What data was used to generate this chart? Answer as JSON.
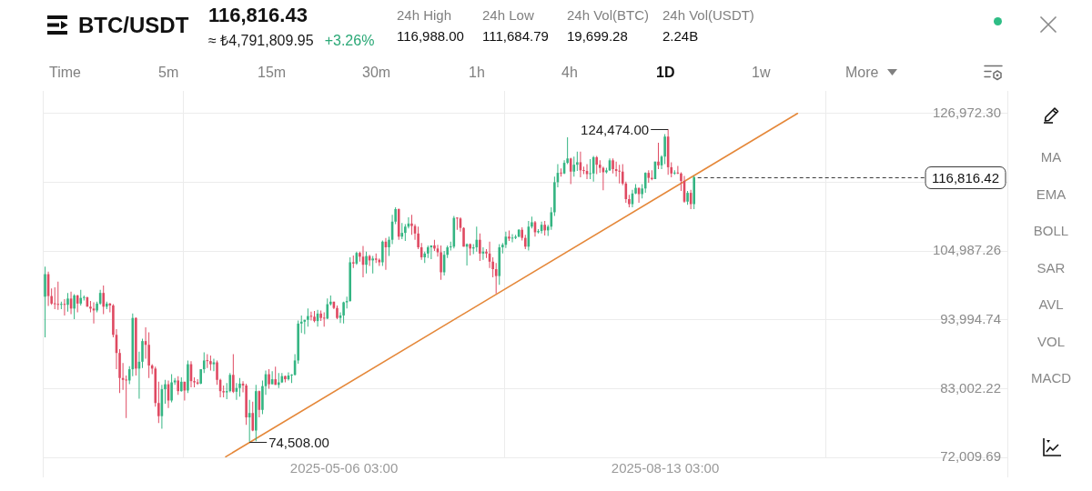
{
  "chart_data": {
    "type": "candlestick",
    "title": "BTC/USDT",
    "annotations": [
      "116,816.43",
      "≈ ₺4,791,809.95",
      "+3.26%",
      "24h High",
      "116,988.00",
      "24h Low",
      "111,684.79",
      "24h Vol(BTC)",
      "19,699.28",
      "24h Vol(USDT)",
      "2.24B",
      "Time",
      "5m",
      "15m",
      "30m",
      "1h",
      "4h",
      "1D",
      "1w",
      "More",
      "MA",
      "EMA",
      "BOLL",
      "SAR",
      "AVL",
      "VOL",
      "MACD",
      {
        "text": "124,474.00",
        "x": "2025-08-14",
        "y": 124474
      },
      {
        "text": "74,508.00",
        "x": "2025-04-07",
        "y": 74508
      }
    ],
    "x": [
      "2025-02-03",
      "2025-02-04",
      "2025-02-05",
      "2025-02-06",
      "2025-02-07",
      "2025-02-08",
      "2025-02-09",
      "2025-02-10",
      "2025-02-11",
      "2025-02-12",
      "2025-02-13",
      "2025-02-14",
      "2025-02-15",
      "2025-02-16",
      "2025-02-17",
      "2025-02-18",
      "2025-02-19",
      "2025-02-20",
      "2025-02-21",
      "2025-02-22",
      "2025-02-23",
      "2025-02-24",
      "2025-02-25",
      "2025-02-26",
      "2025-02-27",
      "2025-02-28",
      "2025-03-01",
      "2025-03-02",
      "2025-03-03",
      "2025-03-04",
      "2025-03-05",
      "2025-03-06",
      "2025-03-07",
      "2025-03-08",
      "2025-03-09",
      "2025-03-10",
      "2025-03-11",
      "2025-03-12",
      "2025-03-13",
      "2025-03-14",
      "2025-03-15",
      "2025-03-16",
      "2025-03-17",
      "2025-03-18",
      "2025-03-19",
      "2025-03-20",
      "2025-03-21",
      "2025-03-22",
      "2025-03-23",
      "2025-03-24",
      "2025-03-25",
      "2025-03-26",
      "2025-03-27",
      "2025-03-28",
      "2025-03-29",
      "2025-03-30",
      "2025-03-31",
      "2025-04-01",
      "2025-04-02",
      "2025-04-03",
      "2025-04-04",
      "2025-04-05",
      "2025-04-06",
      "2025-04-07",
      "2025-04-08",
      "2025-04-09",
      "2025-04-10",
      "2025-04-11",
      "2025-04-12",
      "2025-04-13",
      "2025-04-14",
      "2025-04-15",
      "2025-04-16",
      "2025-04-17",
      "2025-04-18",
      "2025-04-19",
      "2025-04-20",
      "2025-04-21",
      "2025-04-22",
      "2025-04-23",
      "2025-04-24",
      "2025-04-25",
      "2025-04-26",
      "2025-04-27",
      "2025-04-28",
      "2025-04-29",
      "2025-04-30",
      "2025-05-01",
      "2025-05-02",
      "2025-05-03",
      "2025-05-04",
      "2025-05-05",
      "2025-05-06",
      "2025-05-07",
      "2025-05-08",
      "2025-05-09",
      "2025-05-10",
      "2025-05-11",
      "2025-05-12",
      "2025-05-13",
      "2025-05-14",
      "2025-05-15",
      "2025-05-16",
      "2025-05-17",
      "2025-05-18",
      "2025-05-19",
      "2025-05-20",
      "2025-05-21",
      "2025-05-22",
      "2025-05-23",
      "2025-05-24",
      "2025-05-25",
      "2025-05-26",
      "2025-05-27",
      "2025-05-28",
      "2025-05-29",
      "2025-05-30",
      "2025-05-31",
      "2025-06-01",
      "2025-06-02",
      "2025-06-03",
      "2025-06-04",
      "2025-06-05",
      "2025-06-06",
      "2025-06-07",
      "2025-06-08",
      "2025-06-09",
      "2025-06-10",
      "2025-06-11",
      "2025-06-12",
      "2025-06-13",
      "2025-06-14",
      "2025-06-15",
      "2025-06-16",
      "2025-06-17",
      "2025-06-18",
      "2025-06-19",
      "2025-06-20",
      "2025-06-21",
      "2025-06-22",
      "2025-06-23",
      "2025-06-24",
      "2025-06-25",
      "2025-06-26",
      "2025-06-27",
      "2025-06-28",
      "2025-06-29",
      "2025-06-30",
      "2025-07-01",
      "2025-07-02",
      "2025-07-03",
      "2025-07-04",
      "2025-07-05",
      "2025-07-06",
      "2025-07-07",
      "2025-07-08",
      "2025-07-09",
      "2025-07-10",
      "2025-07-11",
      "2025-07-12",
      "2025-07-13",
      "2025-07-14",
      "2025-07-15",
      "2025-07-16",
      "2025-07-17",
      "2025-07-18",
      "2025-07-19",
      "2025-07-20",
      "2025-07-21",
      "2025-07-22",
      "2025-07-23",
      "2025-07-24",
      "2025-07-25",
      "2025-07-26",
      "2025-07-27",
      "2025-07-28",
      "2025-07-29",
      "2025-07-30",
      "2025-07-31",
      "2025-08-01",
      "2025-08-02",
      "2025-08-03",
      "2025-08-04",
      "2025-08-05",
      "2025-08-06",
      "2025-08-07",
      "2025-08-08",
      "2025-08-09",
      "2025-08-10",
      "2025-08-11",
      "2025-08-12",
      "2025-08-13",
      "2025-08-14",
      "2025-08-15",
      "2025-08-16",
      "2025-08-17",
      "2025-08-18",
      "2025-08-19",
      "2025-08-20",
      "2025-08-21",
      "2025-08-22"
    ],
    "ohlc": [
      [
        97700,
        102500,
        91200,
        101300
      ],
      [
        101300,
        101700,
        96200,
        97800
      ],
      [
        97800,
        99000,
        96400,
        96600
      ],
      [
        96600,
        99200,
        95700,
        96500
      ],
      [
        96500,
        100100,
        95600,
        96400
      ],
      [
        96400,
        96900,
        95700,
        96500
      ],
      [
        96500,
        97300,
        94700,
        96400
      ],
      [
        96400,
        98300,
        95300,
        97400
      ],
      [
        97400,
        98500,
        94900,
        95800
      ],
      [
        95800,
        98100,
        94100,
        97900
      ],
      [
        97900,
        98000,
        95200,
        96600
      ],
      [
        96600,
        98800,
        96300,
        97500
      ],
      [
        97500,
        97900,
        97100,
        97600
      ],
      [
        97600,
        97700,
        96100,
        96100
      ],
      [
        96100,
        97000,
        95200,
        95800
      ],
      [
        95800,
        96800,
        93400,
        95500
      ],
      [
        95500,
        96900,
        95200,
        96600
      ],
      [
        96600,
        98800,
        96400,
        98300
      ],
      [
        98300,
        99500,
        94900,
        96100
      ],
      [
        96100,
        96900,
        95700,
        96600
      ],
      [
        96600,
        96700,
        95200,
        96300
      ],
      [
        96300,
        96500,
        91200,
        91600
      ],
      [
        91600,
        92500,
        86100,
        88700
      ],
      [
        88700,
        89300,
        82300,
        84700
      ],
      [
        84700,
        87100,
        82800,
        84400
      ],
      [
        84400,
        85100,
        78300,
        84300
      ],
      [
        84300,
        86600,
        83700,
        86100
      ],
      [
        86100,
        95000,
        85000,
        94300
      ],
      [
        94300,
        94400,
        85100,
        86200
      ],
      [
        86200,
        88900,
        81400,
        87300
      ],
      [
        87300,
        91000,
        86300,
        90600
      ],
      [
        90600,
        92800,
        87800,
        90000
      ],
      [
        90000,
        92000,
        84700,
        86700
      ],
      [
        86700,
        86900,
        85300,
        86200
      ],
      [
        86200,
        86500,
        80100,
        80700
      ],
      [
        80700,
        84100,
        77500,
        78600
      ],
      [
        78600,
        83600,
        76600,
        82900
      ],
      [
        82900,
        84400,
        80600,
        83700
      ],
      [
        83700,
        84300,
        79900,
        81100
      ],
      [
        81100,
        85300,
        80800,
        84000
      ],
      [
        84000,
        84700,
        83600,
        84300
      ],
      [
        84300,
        85000,
        82000,
        82600
      ],
      [
        82600,
        84800,
        82500,
        84100
      ],
      [
        84100,
        84100,
        81100,
        82700
      ],
      [
        82700,
        87500,
        82300,
        86900
      ],
      [
        86900,
        87400,
        83200,
        84200
      ],
      [
        84200,
        84800,
        83200,
        84000
      ],
      [
        84000,
        84500,
        83600,
        83800
      ],
      [
        83800,
        86100,
        83700,
        86100
      ],
      [
        86100,
        88800,
        85500,
        87500
      ],
      [
        87500,
        88500,
        86300,
        87400
      ],
      [
        87400,
        88300,
        85900,
        86900
      ],
      [
        86900,
        87800,
        85800,
        87200
      ],
      [
        87200,
        87500,
        83600,
        84400
      ],
      [
        84400,
        84600,
        81600,
        82600
      ],
      [
        82600,
        83500,
        81600,
        82400
      ],
      [
        82400,
        83900,
        81300,
        82600
      ],
      [
        82600,
        85500,
        82400,
        85200
      ],
      [
        85200,
        88500,
        82300,
        82500
      ],
      [
        82500,
        83900,
        81200,
        83100
      ],
      [
        83100,
        84700,
        81700,
        83800
      ],
      [
        83800,
        84200,
        82400,
        83500
      ],
      [
        83500,
        83800,
        77200,
        78400
      ],
      [
        78400,
        81200,
        74508,
        79100
      ],
      [
        79100,
        80900,
        76200,
        76300
      ],
      [
        76300,
        83600,
        74600,
        82600
      ],
      [
        82600,
        82700,
        78400,
        79600
      ],
      [
        79600,
        84300,
        78900,
        83400
      ],
      [
        83400,
        85900,
        82000,
        85300
      ],
      [
        85300,
        86100,
        83000,
        83700
      ],
      [
        83700,
        85800,
        83700,
        84500
      ],
      [
        84500,
        86500,
        83600,
        83600
      ],
      [
        83600,
        85500,
        83100,
        84000
      ],
      [
        84000,
        85500,
        83900,
        85000
      ],
      [
        85000,
        85100,
        84000,
        84500
      ],
      [
        84500,
        85600,
        84300,
        85100
      ],
      [
        85100,
        85300,
        83900,
        85200
      ],
      [
        85200,
        88500,
        85100,
        87500
      ],
      [
        87500,
        93900,
        87000,
        93400
      ],
      [
        93400,
        94700,
        91900,
        93700
      ],
      [
        93700,
        94000,
        91700,
        94000
      ],
      [
        94000,
        95800,
        92900,
        94600
      ],
      [
        94600,
        95300,
        93900,
        94500
      ],
      [
        94500,
        95400,
        93600,
        93800
      ],
      [
        93800,
        95600,
        92900,
        95000
      ],
      [
        95000,
        95500,
        93800,
        94300
      ],
      [
        94300,
        95200,
        92900,
        94200
      ],
      [
        94200,
        97400,
        94100,
        96500
      ],
      [
        96500,
        97900,
        96300,
        96900
      ],
      [
        96900,
        96900,
        95700,
        95900
      ],
      [
        95900,
        96300,
        94100,
        94300
      ],
      [
        94300,
        95200,
        93500,
        94700
      ],
      [
        94700,
        96900,
        93400,
        96800
      ],
      [
        96800,
        97700,
        95800,
        97000
      ],
      [
        97000,
        104000,
        96900,
        103200
      ],
      [
        103200,
        104300,
        102300,
        103000
      ],
      [
        103000,
        104900,
        102800,
        104700
      ],
      [
        104700,
        104900,
        103300,
        104100
      ],
      [
        104100,
        105800,
        100800,
        102800
      ],
      [
        102800,
        104900,
        101400,
        104200
      ],
      [
        104200,
        104400,
        102600,
        103500
      ],
      [
        103500,
        104200,
        101400,
        103800
      ],
      [
        103800,
        104600,
        103100,
        103600
      ],
      [
        103600,
        103800,
        102600,
        103200
      ],
      [
        103200,
        106700,
        102600,
        106500
      ],
      [
        106500,
        107100,
        102000,
        105600
      ],
      [
        105600,
        107300,
        104200,
        106800
      ],
      [
        106800,
        110800,
        106100,
        109700
      ],
      [
        109700,
        112000,
        109300,
        111700
      ],
      [
        111700,
        111800,
        106800,
        107300
      ],
      [
        107300,
        109500,
        106900,
        107900
      ],
      [
        107900,
        109300,
        106600,
        108900
      ],
      [
        108900,
        110400,
        108600,
        109400
      ],
      [
        109400,
        110800,
        107600,
        109000
      ],
      [
        109000,
        109300,
        106800,
        107800
      ],
      [
        107800,
        108900,
        105300,
        105600
      ],
      [
        105600,
        106300,
        103600,
        104000
      ],
      [
        104000,
        104900,
        103100,
        104600
      ],
      [
        104600,
        105900,
        103900,
        105600
      ],
      [
        105600,
        105900,
        103700,
        105900
      ],
      [
        105900,
        106800,
        105000,
        105400
      ],
      [
        105400,
        106000,
        104100,
        104800
      ],
      [
        104800,
        105900,
        100400,
        101600
      ],
      [
        101600,
        105000,
        101100,
        104400
      ],
      [
        104400,
        105900,
        103900,
        105600
      ],
      [
        105600,
        106500,
        105100,
        105700
      ],
      [
        105700,
        110600,
        105400,
        110300
      ],
      [
        110300,
        110400,
        108400,
        110200
      ],
      [
        110200,
        110400,
        108100,
        108700
      ],
      [
        108700,
        108800,
        105700,
        105700
      ],
      [
        105700,
        106200,
        102700,
        106100
      ],
      [
        106100,
        106200,
        104300,
        105400
      ],
      [
        105400,
        106100,
        104500,
        105600
      ],
      [
        105600,
        108900,
        104900,
        106800
      ],
      [
        106800,
        107800,
        103400,
        104600
      ],
      [
        104600,
        105600,
        103600,
        104900
      ],
      [
        104900,
        105300,
        103900,
        104600
      ],
      [
        104600,
        106500,
        102300,
        103300
      ],
      [
        103300,
        104000,
        100800,
        102100
      ],
      [
        102100,
        103100,
        98200,
        101000
      ],
      [
        101000,
        106100,
        99600,
        105600
      ],
      [
        105600,
        106300,
        104600,
        106000
      ],
      [
        106000,
        108100,
        105500,
        107300
      ],
      [
        107300,
        108300,
        106600,
        107000
      ],
      [
        107000,
        107700,
        106400,
        107100
      ],
      [
        107100,
        107600,
        106900,
        107300
      ],
      [
        107300,
        108500,
        107200,
        108400
      ],
      [
        108400,
        108800,
        106700,
        107100
      ],
      [
        107100,
        107600,
        105300,
        105700
      ],
      [
        105700,
        109800,
        105100,
        108900
      ],
      [
        108900,
        110500,
        108600,
        109600
      ],
      [
        109600,
        109800,
        107300,
        108000
      ],
      [
        108000,
        108500,
        107800,
        108200
      ],
      [
        108200,
        109700,
        107800,
        109200
      ],
      [
        109200,
        109800,
        107500,
        108300
      ],
      [
        108300,
        109200,
        107400,
        108900
      ],
      [
        108900,
        112000,
        108400,
        111200
      ],
      [
        111200,
        116900,
        110600,
        116000
      ],
      [
        116000,
        118900,
        115200,
        117500
      ],
      [
        117500,
        118200,
        116900,
        117400
      ],
      [
        117400,
        119500,
        117300,
        119100
      ],
      [
        119100,
        123200,
        118900,
        119800
      ],
      [
        119800,
        119900,
        115700,
        117700
      ],
      [
        117700,
        120100,
        116900,
        118800
      ],
      [
        118800,
        120900,
        117800,
        119200
      ],
      [
        119200,
        120900,
        116800,
        117900
      ],
      [
        117900,
        118500,
        117300,
        117800
      ],
      [
        117800,
        118900,
        116500,
        117300
      ],
      [
        117300,
        119700,
        116500,
        117400
      ],
      [
        117400,
        120200,
        116100,
        120000
      ],
      [
        120000,
        120200,
        117300,
        118800
      ],
      [
        118800,
        119500,
        117500,
        118300
      ],
      [
        118300,
        118500,
        114700,
        117600
      ],
      [
        117600,
        118300,
        117400,
        117900
      ],
      [
        117900,
        119800,
        117800,
        119500
      ],
      [
        119500,
        119800,
        117400,
        118100
      ],
      [
        118100,
        119300,
        116900,
        117800
      ],
      [
        117800,
        118800,
        115800,
        117700
      ],
      [
        117700,
        118900,
        115500,
        115800
      ],
      [
        115800,
        116100,
        112700,
        113300
      ],
      [
        113300,
        114000,
        112000,
        112500
      ],
      [
        112500,
        114800,
        112000,
        114200
      ],
      [
        114200,
        115700,
        114100,
        115100
      ],
      [
        115100,
        115100,
        112700,
        114100
      ],
      [
        114100,
        115700,
        113400,
        115000
      ],
      [
        115000,
        117600,
        114300,
        117500
      ],
      [
        117500,
        117900,
        115900,
        116700
      ],
      [
        116700,
        117900,
        116300,
        116500
      ],
      [
        116500,
        119300,
        116500,
        119300
      ],
      [
        119300,
        122300,
        118100,
        118700
      ],
      [
        118700,
        120300,
        118100,
        120100
      ],
      [
        120100,
        123700,
        118900,
        123300
      ],
      [
        123300,
        124474,
        117200,
        118400
      ],
      [
        118400,
        119200,
        116800,
        117400
      ],
      [
        117400,
        117900,
        117200,
        117500
      ],
      [
        117500,
        118600,
        117300,
        117400
      ],
      [
        117400,
        117600,
        114600,
        116200
      ],
      [
        116200,
        117000,
        112700,
        112900
      ],
      [
        112900,
        114600,
        112400,
        114300
      ],
      [
        114300,
        114800,
        111700,
        112500
      ],
      [
        112500,
        117000,
        111700,
        116816.42
      ]
    ],
    "colors": [
      "#35b583",
      "#df4a62",
      "#df4a62",
      "#df4a62",
      "#df4a62",
      "#35b583",
      "#df4a62",
      "#35b583",
      "#df4a62",
      "#35b583",
      "#df4a62",
      "#35b583",
      "#35b583",
      "#df4a62",
      "#df4a62",
      "#df4a62",
      "#35b583",
      "#35b583",
      "#df4a62",
      "#35b583",
      "#df4a62",
      "#df4a62",
      "#df4a62",
      "#df4a62",
      "#df4a62",
      "#df4a62",
      "#35b583",
      "#35b583",
      "#df4a62",
      "#35b583",
      "#35b583",
      "#df4a62",
      "#df4a62",
      "#df4a62",
      "#df4a62",
      "#df4a62",
      "#35b583",
      "#35b583",
      "#df4a62",
      "#35b583",
      "#35b583",
      "#df4a62",
      "#35b583",
      "#df4a62",
      "#35b583",
      "#df4a62",
      "#df4a62",
      "#df4a62",
      "#35b583",
      "#35b583",
      "#df4a62",
      "#df4a62",
      "#35b583",
      "#df4a62",
      "#df4a62",
      "#df4a62",
      "#35b583",
      "#35b583",
      "#df4a62",
      "#35b583",
      "#35b583",
      "#df4a62",
      "#df4a62",
      "#35b583",
      "#df4a62",
      "#35b583",
      "#df4a62",
      "#35b583",
      "#35b583",
      "#df4a62",
      "#35b583",
      "#df4a62",
      "#35b583",
      "#35b583",
      "#df4a62",
      "#35b583",
      "#35b583",
      "#35b583",
      "#35b583",
      "#35b583",
      "#35b583",
      "#35b583",
      "#df4a62",
      "#df4a62",
      "#35b583",
      "#df4a62",
      "#df4a62",
      "#35b583",
      "#35b583",
      "#df4a62",
      "#df4a62",
      "#35b583",
      "#35b583",
      "#35b583",
      "#35b583",
      "#df4a62",
      "#35b583",
      "#df4a62",
      "#df4a62",
      "#35b583",
      "#df4a62",
      "#35b583",
      "#df4a62",
      "#df4a62",
      "#35b583",
      "#df4a62",
      "#35b583",
      "#35b583",
      "#35b583",
      "#df4a62",
      "#35b583",
      "#35b583",
      "#35b583",
      "#df4a62",
      "#df4a62",
      "#df4a62",
      "#df4a62",
      "#35b583",
      "#35b583",
      "#35b583",
      "#df4a62",
      "#df4a62",
      "#df4a62",
      "#35b583",
      "#35b583",
      "#35b583",
      "#35b583",
      "#df4a62",
      "#df4a62",
      "#df4a62",
      "#35b583",
      "#df4a62",
      "#35b583",
      "#35b583",
      "#df4a62",
      "#35b583",
      "#df4a62",
      "#df4a62",
      "#df4a62",
      "#df4a62",
      "#35b583",
      "#35b583",
      "#35b583",
      "#df4a62",
      "#35b583",
      "#35b583",
      "#35b583",
      "#df4a62",
      "#df4a62",
      "#35b583",
      "#35b583",
      "#df4a62",
      "#35b583",
      "#35b583",
      "#df4a62",
      "#35b583",
      "#35b583",
      "#35b583",
      "#35b583",
      "#df4a62",
      "#35b583",
      "#35b583",
      "#df4a62",
      "#35b583",
      "#35b583",
      "#df4a62",
      "#df4a62",
      "#df4a62",
      "#35b583",
      "#35b583",
      "#df4a62",
      "#df4a62",
      "#df4a62",
      "#35b583",
      "#35b583",
      "#df4a62",
      "#df4a62",
      "#df4a62",
      "#df4a62",
      "#df4a62",
      "#df4a62",
      "#35b583",
      "#35b583",
      "#df4a62",
      "#35b583",
      "#35b583",
      "#df4a62",
      "#df4a62",
      "#35b583",
      "#df4a62",
      "#35b583",
      "#35b583",
      "#df4a62",
      "#df4a62",
      "#35b583",
      "#df4a62",
      "#df4a62",
      "#df4a62",
      "#35b583",
      "#df4a62",
      "#35b583"
    ],
    "series": [
      {
        "type": "line",
        "x": [
          "2025-03-30T16:00",
          "2025-09-22T21:00"
        ],
        "values": [
          72100,
          127000
        ],
        "color": "#e5883a"
      }
    ],
    "xlim": [
      "2025-02-02T07:00",
      "2025-11-26T20:00"
    ],
    "xticks": [
      {
        "value": "2025-05-06T03:00",
        "label": "2025-05-06 03:00"
      },
      {
        "value": "2025-08-13T03:00",
        "label": "2025-08-13 03:00"
      }
    ],
    "ylim": [
      72009.69,
      130600
    ],
    "yticks": [
      {
        "value": 72009.69,
        "label": "72,009.69"
      },
      {
        "value": 83002.22,
        "label": "83,002.22"
      },
      {
        "value": 93994.74,
        "label": "93,994.74"
      },
      {
        "value": 104987.26,
        "label": "104,987.26"
      },
      {
        "value": 115979.78,
        "label": null
      },
      {
        "value": 126972.3,
        "label": "126,972.30"
      }
    ],
    "grid": true,
    "ref_lines": [
      {
        "axis": "y",
        "value": 116816.42,
        "label": "116,816.42",
        "line_style": "dashed",
        "color": "#3a3a3a"
      }
    ]
  }
}
